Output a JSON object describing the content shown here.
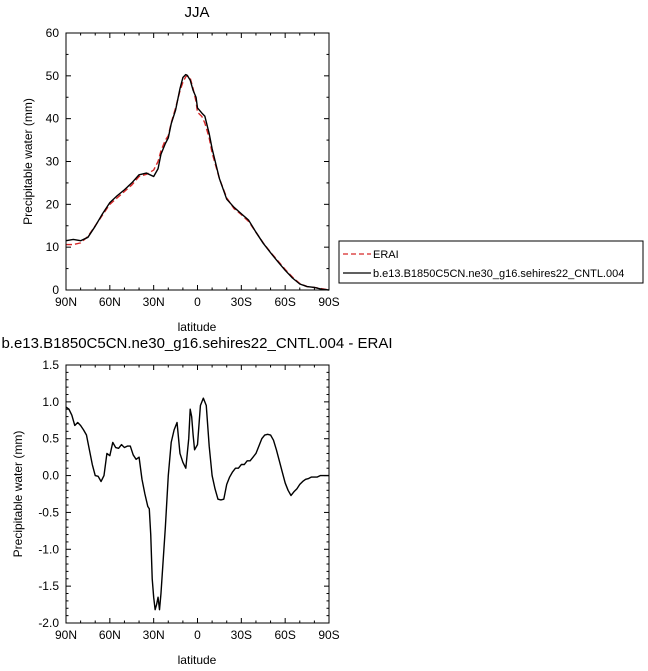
{
  "chart_data": [
    {
      "type": "line",
      "title": "JJA",
      "xlabel": "latitude",
      "ylabel": "Precipitable water (mm)",
      "xlim": [
        90,
        -90
      ],
      "ylim": [
        0,
        60
      ],
      "x_ticks": [
        90,
        60,
        30,
        0,
        -30,
        -60,
        -90
      ],
      "x_tick_labels": [
        "90N",
        "60N",
        "30N",
        "0",
        "30S",
        "60S",
        "90S"
      ],
      "y_ticks": [
        0,
        10,
        20,
        30,
        40,
        50,
        60
      ],
      "y_tick_labels": [
        "0",
        "10",
        "20",
        "30",
        "40",
        "50",
        "60"
      ],
      "grid": false,
      "legend_position": "outside-right",
      "series": [
        {
          "name": "ERAI",
          "color": "#d62728",
          "dash": "dashed",
          "x": [
            90,
            85,
            80,
            75,
            70,
            65,
            60,
            55,
            50,
            45,
            40,
            35,
            30,
            27,
            25,
            22,
            20,
            18,
            15,
            12,
            10,
            8,
            7,
            5,
            3,
            1,
            0,
            -3,
            -5,
            -8,
            -10,
            -15,
            -20,
            -25,
            -30,
            -35,
            -40,
            -45,
            -50,
            -55,
            -60,
            -65,
            -70,
            -75,
            -80,
            -85,
            -90
          ],
          "y": [
            10.6,
            10.6,
            11.0,
            12.5,
            15.0,
            17.5,
            20.0,
            21.5,
            23.0,
            24.5,
            26.5,
            27.0,
            28.0,
            30.0,
            32.5,
            35.0,
            36.0,
            39.0,
            42.5,
            46.5,
            48.5,
            49.8,
            50.0,
            49.5,
            47.0,
            44.0,
            41.5,
            40.5,
            39.0,
            35.5,
            32.0,
            26.0,
            21.5,
            19.0,
            17.6,
            16.0,
            13.5,
            11.0,
            8.8,
            6.8,
            4.8,
            3.0,
            1.5,
            0.8,
            0.6,
            0.3,
            0.0
          ]
        },
        {
          "name": "b.e13.B1850C5CN.ne30_g16.sehires22_CNTL.004",
          "color": "#000000",
          "dash": "solid",
          "x": [
            90,
            85,
            80,
            75,
            70,
            65,
            60,
            55,
            50,
            45,
            40,
            35,
            30,
            27,
            25,
            22,
            20,
            18,
            15,
            12,
            10,
            8,
            7,
            5,
            3,
            1,
            0,
            -3,
            -5,
            -8,
            -10,
            -15,
            -20,
            -25,
            -30,
            -35,
            -40,
            -45,
            -50,
            -55,
            -60,
            -65,
            -70,
            -75,
            -80,
            -85,
            -90
          ],
          "y": [
            11.5,
            11.8,
            11.5,
            12.3,
            14.9,
            17.8,
            20.4,
            22.0,
            23.4,
            25.0,
            26.9,
            27.3,
            26.5,
            28.3,
            31.7,
            34.2,
            35.5,
            38.8,
            42.0,
            47.0,
            49.6,
            50.3,
            50.1,
            49.0,
            46.6,
            45.0,
            42.5,
            41.3,
            40.6,
            36.5,
            33.0,
            26.0,
            21.2,
            19.3,
            17.8,
            16.3,
            13.5,
            10.9,
            8.7,
            6.6,
            4.6,
            2.8,
            1.4,
            0.8,
            0.6,
            0.2,
            0.0
          ]
        }
      ]
    },
    {
      "type": "line",
      "title": "b.e13.B1850C5CN.ne30_g16.sehires22_CNTL.004 - ERAI",
      "xlabel": "latitude",
      "ylabel": "Precipitable water (mm)",
      "xlim": [
        90,
        -90
      ],
      "ylim": [
        -2.0,
        1.5
      ],
      "x_ticks": [
        90,
        60,
        30,
        0,
        -30,
        -60,
        -90
      ],
      "x_tick_labels": [
        "90N",
        "60N",
        "30N",
        "0",
        "30S",
        "60S",
        "90S"
      ],
      "y_ticks": [
        -2.0,
        -1.5,
        -1.0,
        -0.5,
        0.0,
        0.5,
        1.0,
        1.5
      ],
      "y_tick_labels": [
        "-2.0",
        "-1.5",
        "-1.0",
        "-0.5",
        "0.0",
        "0.5",
        "1.0",
        "1.5"
      ],
      "grid": false,
      "series": [
        {
          "color": "#000000",
          "dash": "solid",
          "x": [
            90,
            88,
            86,
            84,
            82,
            80,
            78,
            76,
            74,
            72,
            70,
            68,
            66,
            64,
            62,
            60,
            58,
            56,
            54,
            52,
            50,
            48,
            46,
            44,
            42,
            40,
            38,
            36,
            34,
            33,
            32,
            31,
            30,
            29,
            28,
            27,
            26,
            25,
            24,
            22,
            20,
            18,
            16,
            14,
            12,
            10,
            8,
            6,
            5,
            4,
            3,
            2,
            0,
            -2,
            -4,
            -6,
            -8,
            -10,
            -12,
            -14,
            -16,
            -18,
            -20,
            -22,
            -24,
            -26,
            -28,
            -30,
            -32,
            -34,
            -36,
            -38,
            -40,
            -42,
            -44,
            -46,
            -48,
            -50,
            -52,
            -54,
            -56,
            -58,
            -60,
            -62,
            -64,
            -66,
            -68,
            -70,
            -72,
            -74,
            -76,
            -78,
            -80,
            -82,
            -84,
            -86,
            -88,
            -90
          ],
          "y": [
            0.93,
            0.9,
            0.82,
            0.68,
            0.72,
            0.68,
            0.62,
            0.55,
            0.35,
            0.15,
            0.0,
            -0.01,
            -0.08,
            0.0,
            0.3,
            0.27,
            0.45,
            0.38,
            0.37,
            0.42,
            0.38,
            0.4,
            0.4,
            0.28,
            0.22,
            0.25,
            -0.05,
            -0.25,
            -0.42,
            -0.45,
            -0.8,
            -1.4,
            -1.65,
            -1.82,
            -1.75,
            -1.65,
            -1.82,
            -1.6,
            -1.3,
            -0.7,
            0.0,
            0.45,
            0.62,
            0.72,
            0.3,
            0.18,
            0.1,
            0.5,
            0.9,
            0.8,
            0.55,
            0.35,
            0.42,
            0.95,
            1.05,
            0.95,
            0.4,
            0.0,
            -0.18,
            -0.32,
            -0.33,
            -0.32,
            -0.12,
            -0.02,
            0.05,
            0.1,
            0.1,
            0.15,
            0.15,
            0.2,
            0.2,
            0.25,
            0.3,
            0.4,
            0.5,
            0.55,
            0.56,
            0.55,
            0.48,
            0.35,
            0.2,
            0.05,
            -0.1,
            -0.2,
            -0.27,
            -0.22,
            -0.18,
            -0.12,
            -0.08,
            -0.05,
            -0.04,
            -0.02,
            -0.02,
            -0.02,
            0.0,
            0.0,
            0.0,
            0.0
          ]
        }
      ]
    }
  ]
}
